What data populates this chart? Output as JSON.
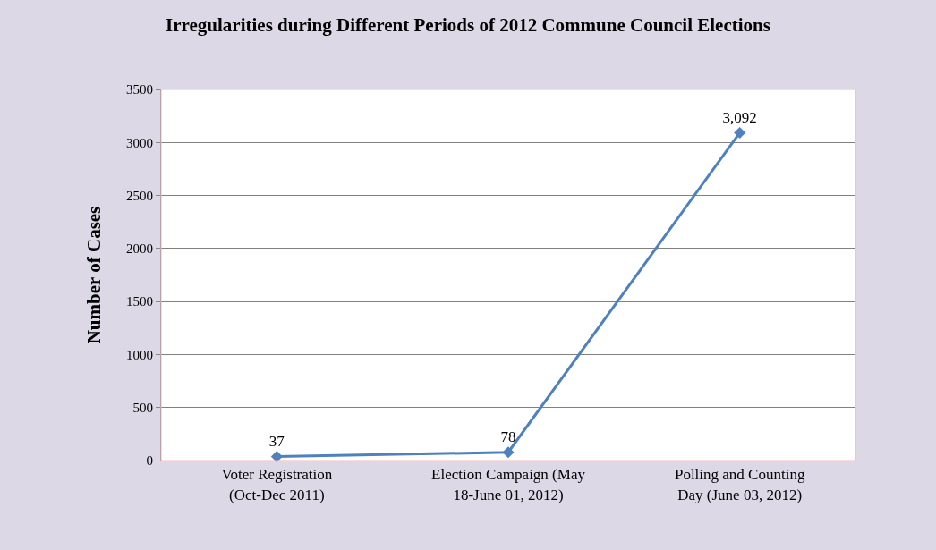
{
  "chart_data": {
    "type": "line",
    "title": "Irregularities during Different Periods of 2012 Commune Council Elections",
    "ylabel": "Number of Cases",
    "categories": [
      "Voter Registration (Oct-Dec 2011)",
      "Election Campaign (May 18-June 01, 2012)",
      "Polling and Counting Day (June 03, 2012)"
    ],
    "values": [
      37,
      78,
      3092
    ],
    "value_labels": [
      "37",
      "78",
      "3,092"
    ],
    "color": "#4f81bd",
    "ylim": [
      0,
      3500
    ],
    "yticks": [
      0,
      500,
      1000,
      1500,
      2000,
      2500,
      3000,
      3500
    ],
    "grid": "y",
    "marker": "diamond",
    "line_style": "solid",
    "legend": false
  }
}
